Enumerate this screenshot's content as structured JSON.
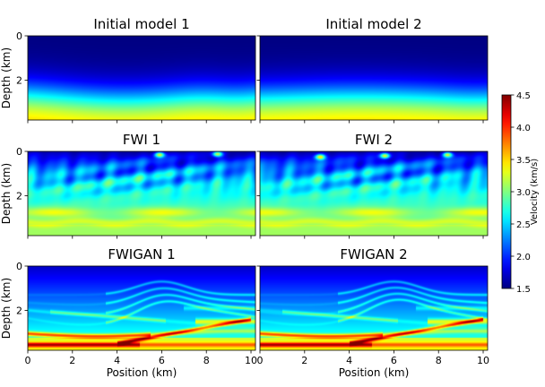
{
  "chart_data": {
    "type": "heatmap",
    "colormap": "jet",
    "panels": [
      {
        "id": "initial-model-1",
        "title": "Initial model 1",
        "kind": "smooth",
        "variant": 1
      },
      {
        "id": "initial-model-2",
        "title": "Initial model 2",
        "kind": "smooth",
        "variant": 2
      },
      {
        "id": "fwi-1",
        "title": "FWI 1",
        "kind": "fwi",
        "variant": 1
      },
      {
        "id": "fwi-2",
        "title": "FWI 2",
        "kind": "fwi",
        "variant": 2
      },
      {
        "id": "fwigan-1",
        "title": "FWIGAN 1",
        "kind": "fwigan",
        "variant": 1
      },
      {
        "id": "fwigan-2",
        "title": "FWIGAN 2",
        "kind": "fwigan",
        "variant": 2
      }
    ],
    "xlabel": "Position (km)",
    "ylabel": "Depth (km)",
    "x_ticks": [
      "0",
      "2",
      "4",
      "6",
      "8",
      "10"
    ],
    "x_tick_values": [
      0,
      2,
      4,
      6,
      8,
      10
    ],
    "y_ticks": [
      "0",
      "2"
    ],
    "y_tick_values": [
      0,
      2
    ],
    "xlim": [
      0,
      10.2
    ],
    "ylim": [
      0,
      3.8
    ],
    "colorbar": {
      "label": "Velocity (km/s)",
      "ticks": [
        "1.5",
        "2.0",
        "2.5",
        "3.0",
        "3.5",
        "4.0",
        "4.5"
      ],
      "tick_values": [
        1.5,
        2.0,
        2.5,
        3.0,
        3.5,
        4.0,
        4.5
      ],
      "range": [
        1.5,
        4.5
      ]
    }
  }
}
